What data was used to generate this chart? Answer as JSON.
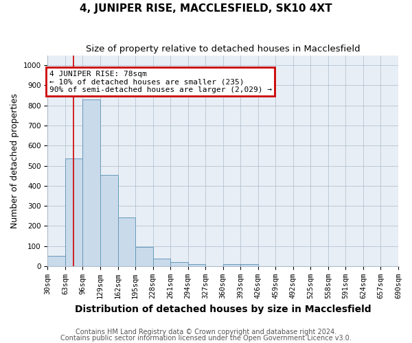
{
  "title": "4, JUNIPER RISE, MACCLESFIELD, SK10 4XT",
  "subtitle": "Size of property relative to detached houses in Macclesfield",
  "xlabel": "Distribution of detached houses by size in Macclesfield",
  "ylabel": "Number of detached properties",
  "footnote1": "Contains HM Land Registry data © Crown copyright and database right 2024.",
  "footnote2": "Contains public sector information licensed under the Open Government Licence v3.0.",
  "bin_edges": [
    30,
    63,
    96,
    129,
    162,
    195,
    228,
    261,
    294,
    327,
    360,
    393,
    426,
    459,
    492,
    525,
    558,
    591,
    624,
    657,
    690
  ],
  "bar_heights": [
    50,
    535,
    830,
    455,
    242,
    97,
    37,
    22,
    11,
    0,
    9,
    9,
    0,
    0,
    0,
    0,
    0,
    0,
    0,
    0
  ],
  "bar_color": "#c9daea",
  "bar_edge_color": "#6699bb",
  "bar_linewidth": 0.7,
  "red_line_x": 78,
  "red_line_color": "#cc0000",
  "annotation_text": "4 JUNIPER RISE: 78sqm\n← 10% of detached houses are smaller (235)\n90% of semi-detached houses are larger (2,029) →",
  "annotation_box_color": "#cc0000",
  "ylim": [
    0,
    1050
  ],
  "yticks": [
    0,
    100,
    200,
    300,
    400,
    500,
    600,
    700,
    800,
    900,
    1000
  ],
  "background_color": "#e8eef5",
  "grid_color": "#aabbcc",
  "title_fontsize": 11,
  "subtitle_fontsize": 9.5,
  "xlabel_fontsize": 10,
  "ylabel_fontsize": 9,
  "tick_fontsize": 7.5,
  "annotation_fontsize": 8,
  "footnote_fontsize": 7
}
